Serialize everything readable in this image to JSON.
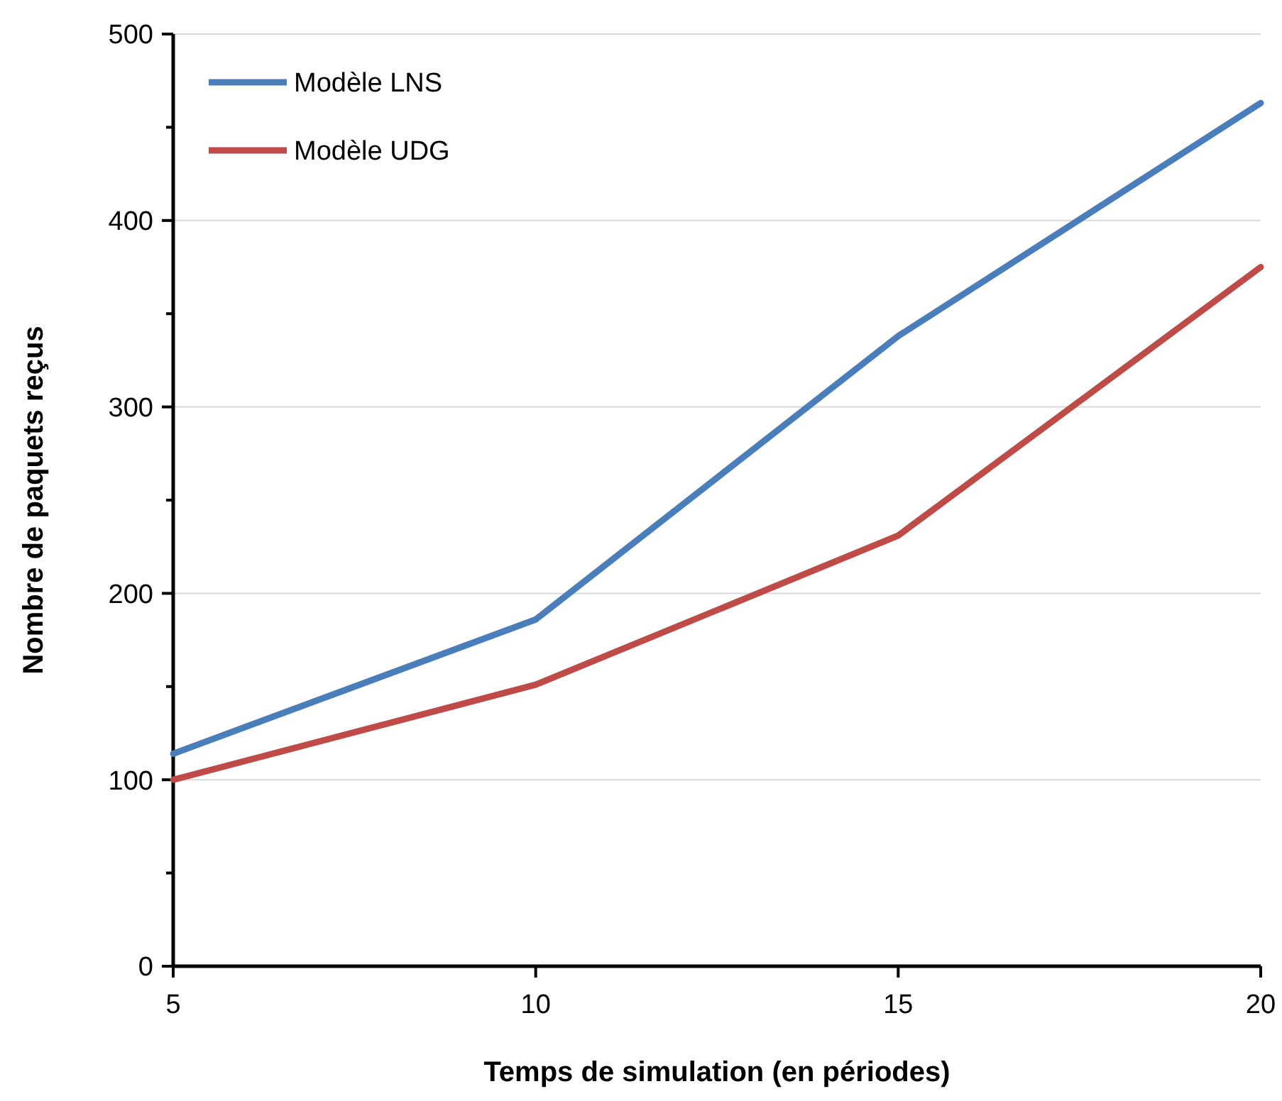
{
  "chart_data": {
    "type": "line",
    "xlabel": "Temps de simulation (en périodes)",
    "ylabel": "Nombre de paquets reçus",
    "x": [
      5,
      10,
      15,
      20
    ],
    "series": [
      {
        "name": "Modèle LNS",
        "color": "#4a7ebb",
        "values": [
          114,
          186,
          338,
          463
        ]
      },
      {
        "name": "Modèle UDG",
        "color": "#be4b48",
        "values": [
          100,
          151,
          231,
          375
        ]
      }
    ],
    "xlim": [
      5,
      20
    ],
    "xticks": [
      5,
      10,
      15,
      20
    ],
    "ylim": [
      0,
      500
    ],
    "yticks": [
      0,
      {
        "value": 50,
        "label": null
      },
      100,
      {
        "value": 150,
        "label": null
      },
      200,
      {
        "value": 250,
        "label": null
      },
      300,
      {
        "value": 350,
        "label": null
      },
      400,
      {
        "value": 450,
        "label": null
      },
      500
    ],
    "grid": "y",
    "legend": "top left",
    "marker": "none",
    "line_style": "solid"
  }
}
